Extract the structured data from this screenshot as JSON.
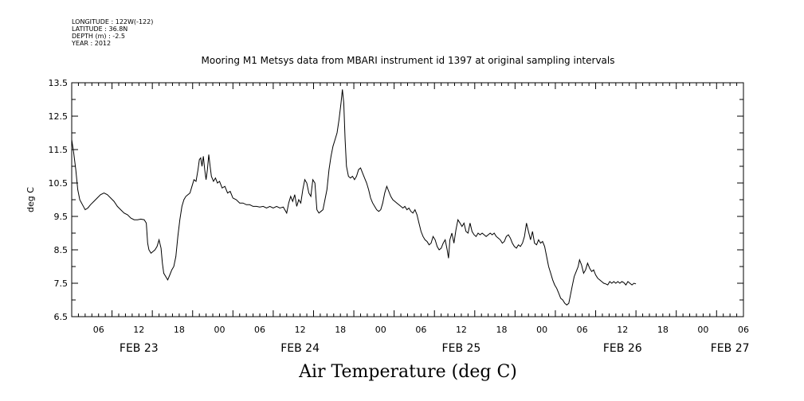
{
  "header": {
    "longitude": "LONGITUDE : 122W(-122)",
    "latitude": "LATITUDE : 36.8N",
    "depth": "DEPTH (m) : -2.5",
    "year": "YEAR : 2012"
  },
  "chart_data": {
    "type": "line",
    "title": "Mooring M1 Metsys data from MBARI instrument id 1397 at original sampling intervals",
    "ylabel": "deg C",
    "xlabel": "Air Temperature (deg C)",
    "xlim": [
      0,
      100
    ],
    "ylim": [
      6.5,
      13.5
    ],
    "y_ticks": [
      "6.5",
      "7.5",
      "8.5",
      "9.5",
      "10.5",
      "11.5",
      "12.5",
      "13.5"
    ],
    "x_tick_labels": [
      {
        "x": 4,
        "label": "06"
      },
      {
        "x": 10,
        "label": "12"
      },
      {
        "x": 16,
        "label": "18"
      },
      {
        "x": 22,
        "label": "00"
      },
      {
        "x": 28,
        "label": "06"
      },
      {
        "x": 34,
        "label": "12"
      },
      {
        "x": 40,
        "label": "18"
      },
      {
        "x": 46,
        "label": "00"
      },
      {
        "x": 52,
        "label": "06"
      },
      {
        "x": 58,
        "label": "12"
      },
      {
        "x": 64,
        "label": "18"
      },
      {
        "x": 70,
        "label": "00"
      },
      {
        "x": 76,
        "label": "06"
      },
      {
        "x": 82,
        "label": "12"
      },
      {
        "x": 88,
        "label": "18"
      },
      {
        "x": 94,
        "label": "00"
      },
      {
        "x": 100,
        "label": "06"
      }
    ],
    "date_labels": [
      {
        "x": 10,
        "label": "FEB 23"
      },
      {
        "x": 34,
        "label": "FEB 24"
      },
      {
        "x": 58,
        "label": "FEB 25"
      },
      {
        "x": 82,
        "label": "FEB 26"
      },
      {
        "x": 98,
        "label": "FEB 27"
      }
    ],
    "series": [
      {
        "color": "#000000",
        "points": [
          [
            0.0,
            11.8
          ],
          [
            0.3,
            11.4
          ],
          [
            0.6,
            10.9
          ],
          [
            0.9,
            10.3
          ],
          [
            1.2,
            10.0
          ],
          [
            1.6,
            9.85
          ],
          [
            2.0,
            9.7
          ],
          [
            2.4,
            9.75
          ],
          [
            2.8,
            9.85
          ],
          [
            3.3,
            9.95
          ],
          [
            3.8,
            10.05
          ],
          [
            4.3,
            10.15
          ],
          [
            4.8,
            10.2
          ],
          [
            5.3,
            10.15
          ],
          [
            5.8,
            10.05
          ],
          [
            6.3,
            9.95
          ],
          [
            6.8,
            9.8
          ],
          [
            7.3,
            9.7
          ],
          [
            7.8,
            9.6
          ],
          [
            8.3,
            9.55
          ],
          [
            8.8,
            9.45
          ],
          [
            9.3,
            9.4
          ],
          [
            9.8,
            9.4
          ],
          [
            10.3,
            9.42
          ],
          [
            10.8,
            9.4
          ],
          [
            11.1,
            9.3
          ],
          [
            11.3,
            8.7
          ],
          [
            11.5,
            8.5
          ],
          [
            11.8,
            8.4
          ],
          [
            12.1,
            8.45
          ],
          [
            12.4,
            8.5
          ],
          [
            12.7,
            8.6
          ],
          [
            13.0,
            8.8
          ],
          [
            13.3,
            8.55
          ],
          [
            13.5,
            8.1
          ],
          [
            13.7,
            7.8
          ],
          [
            14.0,
            7.7
          ],
          [
            14.3,
            7.6
          ],
          [
            14.6,
            7.75
          ],
          [
            14.9,
            7.9
          ],
          [
            15.2,
            8.0
          ],
          [
            15.5,
            8.3
          ],
          [
            15.8,
            8.9
          ],
          [
            16.1,
            9.4
          ],
          [
            16.4,
            9.8
          ],
          [
            16.7,
            10.0
          ],
          [
            17.0,
            10.1
          ],
          [
            17.3,
            10.15
          ],
          [
            17.6,
            10.2
          ],
          [
            17.9,
            10.4
          ],
          [
            18.2,
            10.6
          ],
          [
            18.5,
            10.55
          ],
          [
            18.8,
            10.9
          ],
          [
            19.0,
            11.2
          ],
          [
            19.2,
            11.25
          ],
          [
            19.4,
            11.0
          ],
          [
            19.6,
            11.3
          ],
          [
            19.8,
            10.9
          ],
          [
            20.0,
            10.6
          ],
          [
            20.2,
            10.9
          ],
          [
            20.4,
            11.35
          ],
          [
            20.6,
            11.0
          ],
          [
            20.8,
            10.7
          ],
          [
            21.1,
            10.55
          ],
          [
            21.4,
            10.65
          ],
          [
            21.7,
            10.5
          ],
          [
            22.0,
            10.55
          ],
          [
            22.4,
            10.35
          ],
          [
            22.8,
            10.4
          ],
          [
            23.2,
            10.2
          ],
          [
            23.6,
            10.25
          ],
          [
            24.0,
            10.05
          ],
          [
            24.5,
            10.0
          ],
          [
            25.0,
            9.9
          ],
          [
            25.5,
            9.9
          ],
          [
            26.0,
            9.85
          ],
          [
            26.5,
            9.85
          ],
          [
            27.0,
            9.8
          ],
          [
            27.5,
            9.8
          ],
          [
            28.0,
            9.78
          ],
          [
            28.5,
            9.8
          ],
          [
            29.0,
            9.75
          ],
          [
            29.5,
            9.8
          ],
          [
            30.0,
            9.75
          ],
          [
            30.5,
            9.8
          ],
          [
            31.0,
            9.75
          ],
          [
            31.5,
            9.78
          ],
          [
            32.0,
            9.6
          ],
          [
            32.3,
            9.9
          ],
          [
            32.6,
            10.1
          ],
          [
            32.9,
            9.95
          ],
          [
            33.2,
            10.15
          ],
          [
            33.5,
            9.8
          ],
          [
            33.8,
            10.0
          ],
          [
            34.1,
            9.9
          ],
          [
            34.4,
            10.3
          ],
          [
            34.7,
            10.6
          ],
          [
            35.0,
            10.5
          ],
          [
            35.3,
            10.2
          ],
          [
            35.6,
            10.1
          ],
          [
            35.9,
            10.6
          ],
          [
            36.2,
            10.5
          ],
          [
            36.5,
            9.7
          ],
          [
            36.8,
            9.6
          ],
          [
            37.1,
            9.65
          ],
          [
            37.4,
            9.7
          ],
          [
            37.7,
            10.0
          ],
          [
            38.0,
            10.3
          ],
          [
            38.3,
            10.9
          ],
          [
            38.6,
            11.3
          ],
          [
            38.9,
            11.6
          ],
          [
            39.2,
            11.8
          ],
          [
            39.5,
            12.0
          ],
          [
            39.8,
            12.4
          ],
          [
            40.1,
            12.9
          ],
          [
            40.3,
            13.3
          ],
          [
            40.5,
            12.9
          ],
          [
            40.7,
            11.8
          ],
          [
            40.9,
            11.0
          ],
          [
            41.2,
            10.7
          ],
          [
            41.5,
            10.65
          ],
          [
            41.8,
            10.7
          ],
          [
            42.1,
            10.6
          ],
          [
            42.4,
            10.7
          ],
          [
            42.7,
            10.9
          ],
          [
            43.0,
            10.95
          ],
          [
            43.3,
            10.8
          ],
          [
            43.6,
            10.65
          ],
          [
            43.9,
            10.5
          ],
          [
            44.2,
            10.3
          ],
          [
            44.5,
            10.05
          ],
          [
            44.8,
            9.9
          ],
          [
            45.1,
            9.8
          ],
          [
            45.4,
            9.7
          ],
          [
            45.7,
            9.65
          ],
          [
            46.0,
            9.7
          ],
          [
            46.3,
            9.9
          ],
          [
            46.6,
            10.2
          ],
          [
            46.9,
            10.4
          ],
          [
            47.2,
            10.25
          ],
          [
            47.5,
            10.1
          ],
          [
            47.8,
            10.0
          ],
          [
            48.1,
            9.95
          ],
          [
            48.4,
            9.9
          ],
          [
            48.7,
            9.85
          ],
          [
            49.0,
            9.8
          ],
          [
            49.3,
            9.75
          ],
          [
            49.6,
            9.8
          ],
          [
            49.9,
            9.7
          ],
          [
            50.2,
            9.75
          ],
          [
            50.5,
            9.65
          ],
          [
            50.8,
            9.6
          ],
          [
            51.1,
            9.7
          ],
          [
            51.4,
            9.55
          ],
          [
            51.7,
            9.3
          ],
          [
            52.0,
            9.05
          ],
          [
            52.3,
            8.9
          ],
          [
            52.6,
            8.8
          ],
          [
            52.9,
            8.75
          ],
          [
            53.2,
            8.65
          ],
          [
            53.5,
            8.7
          ],
          [
            53.8,
            8.9
          ],
          [
            54.1,
            8.8
          ],
          [
            54.4,
            8.6
          ],
          [
            54.7,
            8.5
          ],
          [
            55.0,
            8.55
          ],
          [
            55.3,
            8.7
          ],
          [
            55.6,
            8.8
          ],
          [
            55.9,
            8.5
          ],
          [
            56.1,
            8.25
          ],
          [
            56.3,
            8.8
          ],
          [
            56.6,
            9.0
          ],
          [
            56.9,
            8.7
          ],
          [
            57.2,
            9.1
          ],
          [
            57.5,
            9.4
          ],
          [
            57.8,
            9.3
          ],
          [
            58.1,
            9.2
          ],
          [
            58.4,
            9.3
          ],
          [
            58.7,
            9.05
          ],
          [
            59.0,
            9.0
          ],
          [
            59.3,
            9.3
          ],
          [
            59.6,
            9.05
          ],
          [
            59.9,
            8.95
          ],
          [
            60.2,
            8.9
          ],
          [
            60.5,
            9.0
          ],
          [
            60.8,
            8.95
          ],
          [
            61.1,
            9.0
          ],
          [
            61.4,
            8.95
          ],
          [
            61.7,
            8.9
          ],
          [
            62.0,
            8.95
          ],
          [
            62.3,
            9.0
          ],
          [
            62.6,
            8.95
          ],
          [
            62.9,
            9.0
          ],
          [
            63.2,
            8.9
          ],
          [
            63.5,
            8.85
          ],
          [
            63.8,
            8.8
          ],
          [
            64.1,
            8.7
          ],
          [
            64.4,
            8.75
          ],
          [
            64.7,
            8.9
          ],
          [
            65.0,
            8.95
          ],
          [
            65.3,
            8.85
          ],
          [
            65.6,
            8.7
          ],
          [
            65.9,
            8.6
          ],
          [
            66.2,
            8.55
          ],
          [
            66.5,
            8.65
          ],
          [
            66.8,
            8.6
          ],
          [
            67.1,
            8.7
          ],
          [
            67.4,
            8.9
          ],
          [
            67.7,
            9.3
          ],
          [
            68.0,
            9.05
          ],
          [
            68.3,
            8.8
          ],
          [
            68.6,
            9.05
          ],
          [
            68.9,
            8.7
          ],
          [
            69.2,
            8.65
          ],
          [
            69.5,
            8.8
          ],
          [
            69.8,
            8.7
          ],
          [
            70.1,
            8.75
          ],
          [
            70.4,
            8.6
          ],
          [
            70.7,
            8.3
          ],
          [
            71.0,
            8.0
          ],
          [
            71.3,
            7.8
          ],
          [
            71.6,
            7.6
          ],
          [
            71.9,
            7.45
          ],
          [
            72.2,
            7.35
          ],
          [
            72.5,
            7.2
          ],
          [
            72.8,
            7.05
          ],
          [
            73.1,
            7.0
          ],
          [
            73.4,
            6.9
          ],
          [
            73.7,
            6.85
          ],
          [
            74.0,
            6.9
          ],
          [
            74.2,
            7.1
          ],
          [
            74.5,
            7.4
          ],
          [
            74.8,
            7.7
          ],
          [
            75.1,
            7.85
          ],
          [
            75.4,
            8.0
          ],
          [
            75.6,
            8.2
          ],
          [
            75.9,
            8.05
          ],
          [
            76.2,
            7.8
          ],
          [
            76.5,
            7.9
          ],
          [
            76.8,
            8.1
          ],
          [
            77.1,
            7.95
          ],
          [
            77.4,
            7.85
          ],
          [
            77.7,
            7.9
          ],
          [
            78.0,
            7.75
          ],
          [
            78.3,
            7.65
          ],
          [
            78.6,
            7.6
          ],
          [
            78.9,
            7.55
          ],
          [
            79.2,
            7.5
          ],
          [
            79.5,
            7.48
          ],
          [
            79.8,
            7.45
          ],
          [
            80.1,
            7.55
          ],
          [
            80.4,
            7.5
          ],
          [
            80.7,
            7.55
          ],
          [
            81.0,
            7.5
          ],
          [
            81.3,
            7.55
          ],
          [
            81.6,
            7.5
          ],
          [
            81.9,
            7.55
          ],
          [
            82.2,
            7.52
          ],
          [
            82.5,
            7.45
          ],
          [
            82.8,
            7.55
          ],
          [
            83.1,
            7.5
          ],
          [
            83.4,
            7.45
          ],
          [
            83.7,
            7.5
          ],
          [
            84.0,
            7.48
          ]
        ]
      }
    ]
  }
}
